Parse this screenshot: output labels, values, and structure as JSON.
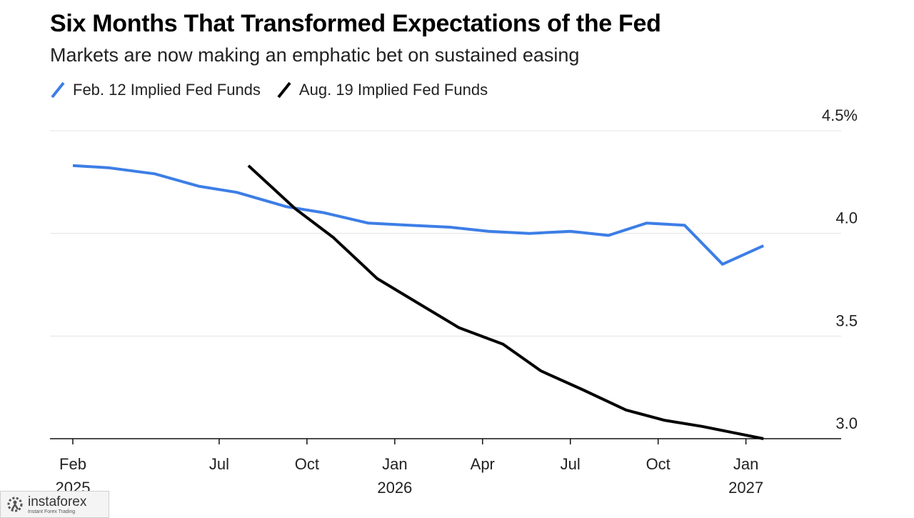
{
  "chart_data": {
    "type": "line",
    "title": "Six Months That Transformed Expectations of the Fed",
    "subtitle": "Markets are now making an emphatic bet on sustained easing",
    "ylim": [
      2.95,
      4.55
    ],
    "yticks": [
      {
        "value": 4.5,
        "label": "4.5%"
      },
      {
        "value": 4.0,
        "label": "4.0"
      },
      {
        "value": 3.5,
        "label": "3.5"
      },
      {
        "value": 3.0,
        "label": "3.0"
      }
    ],
    "xlim": [
      0,
      26
    ],
    "xticks": [
      {
        "value": 0,
        "month": "Feb",
        "year": "2025"
      },
      {
        "value": 5,
        "month": "Jul",
        "year": ""
      },
      {
        "value": 8,
        "month": "Oct",
        "year": ""
      },
      {
        "value": 11,
        "month": "Jan",
        "year": "2026"
      },
      {
        "value": 14,
        "month": "Apr",
        "year": ""
      },
      {
        "value": 17,
        "month": "Jul",
        "year": ""
      },
      {
        "value": 20,
        "month": "Oct",
        "year": ""
      },
      {
        "value": 23,
        "month": "Jan",
        "year": "2027"
      }
    ],
    "series": [
      {
        "name": "Feb. 12 Implied Fed Funds",
        "color": "#3d7ee6",
        "x": [
          0,
          1.2,
          2.8,
          4.3,
          5.6,
          7.3,
          8.6,
          10.1,
          11.5,
          12.9,
          14.2,
          15.6,
          17.0,
          18.3,
          19.6,
          20.9,
          22.2,
          23.6
        ],
        "y": [
          4.33,
          4.32,
          4.29,
          4.23,
          4.2,
          4.13,
          4.1,
          4.05,
          4.04,
          4.03,
          4.01,
          4.0,
          4.01,
          3.99,
          4.05,
          4.04,
          3.85,
          3.94
        ]
      },
      {
        "name": "Aug. 19 Implied Fed Funds",
        "color": "#000000",
        "x": [
          6.0,
          7.6,
          8.9,
          10.4,
          11.8,
          13.2,
          14.7,
          16.0,
          17.4,
          18.9,
          20.2,
          21.5,
          23.6
        ],
        "y": [
          4.33,
          4.12,
          3.98,
          3.78,
          3.66,
          3.54,
          3.46,
          3.33,
          3.24,
          3.14,
          3.09,
          3.06,
          3.0
        ]
      }
    ]
  },
  "watermark": {
    "name": "instaforex",
    "tagline": "Instant Forex Trading"
  }
}
